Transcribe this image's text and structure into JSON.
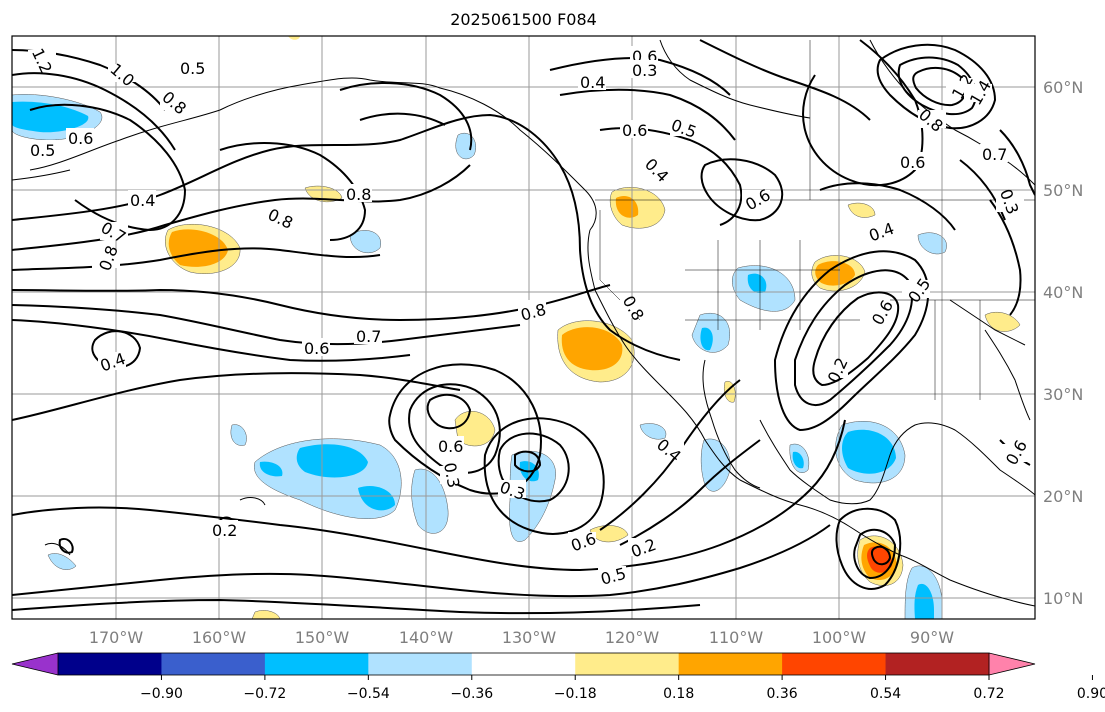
{
  "title": "2025061500 F084",
  "map": {
    "lon_labels": [
      "170°W",
      "160°W",
      "150°W",
      "140°W",
      "130°W",
      "120°W",
      "110°W",
      "100°W",
      "90°W"
    ],
    "lat_labels": [
      "60°N",
      "50°N",
      "40°N",
      "30°N",
      "20°N",
      "10°N"
    ],
    "contour_labels": [
      "1.2",
      "1.0",
      "0.8",
      "0.5",
      "0.6",
      "0.5",
      "0.4",
      "0.8",
      "0.7",
      "0.8",
      "0.8",
      "0.8",
      "0.7",
      "0.6",
      "0.4",
      "0.2",
      "0.3",
      "0.4",
      "0.6",
      "0.5",
      "0.6",
      "0.4",
      "0.6",
      "0.3",
      "0.4",
      "0.6",
      "1.2",
      "1.4",
      "0.8",
      "0.6",
      "0.7",
      "0.6",
      "0.3",
      "0.4",
      "0.6",
      "0.3",
      "0.2",
      "0.5",
      "0.8",
      "0.6",
      "0.5",
      "0.2"
    ]
  },
  "colorbar": {
    "ticks": [
      "−0.90",
      "−0.72",
      "−0.54",
      "−0.36",
      "−0.18",
      "0.18",
      "0.36",
      "0.54",
      "0.72",
      "0.90"
    ],
    "colors": [
      "#9932cc",
      "#00008b",
      "#3a5fcd",
      "#00bfff",
      "#b0e2ff",
      "#ffffff",
      "#ffec8b",
      "#ffa500",
      "#ff4500",
      "#b22222",
      "#ff82ab"
    ]
  },
  "colors": {
    "cold": "#00bfff",
    "cold_light": "#b0e2ff",
    "warm": "#ffa500",
    "warm_light": "#ffec8b"
  }
}
